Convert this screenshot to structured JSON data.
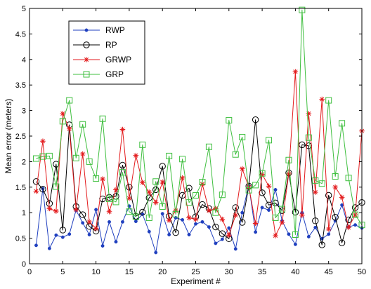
{
  "chart_data": {
    "type": "line",
    "title": "",
    "xlabel": "Experiment #",
    "ylabel": "Mean error (meters)",
    "xlim": [
      0,
      50
    ],
    "ylim": [
      0,
      5
    ],
    "xticks": [
      0,
      5,
      10,
      15,
      20,
      25,
      30,
      35,
      40,
      45,
      50
    ],
    "yticks": [
      0,
      0.5,
      1,
      1.5,
      2,
      2.5,
      3,
      3.5,
      4,
      4.5,
      5
    ],
    "ytick_labels": [
      "0",
      "0.5",
      "1",
      "1.5",
      "2",
      "2.5",
      "3",
      "3.5",
      "4",
      "4.5",
      "5"
    ],
    "grid": false,
    "legend_position": "top-left",
    "x": [
      1,
      2,
      3,
      4,
      5,
      6,
      7,
      8,
      9,
      10,
      11,
      12,
      13,
      14,
      15,
      16,
      17,
      18,
      19,
      20,
      21,
      22,
      23,
      24,
      25,
      26,
      27,
      28,
      29,
      30,
      31,
      32,
      33,
      34,
      35,
      36,
      37,
      38,
      39,
      40,
      41,
      42,
      43,
      44,
      45,
      46,
      47,
      48,
      49,
      50
    ],
    "series": [
      {
        "name": "RWP",
        "color": "#1f3fbf",
        "marker": "dot",
        "values": [
          0.36,
          1.47,
          0.3,
          0.56,
          0.52,
          0.58,
          1.05,
          0.8,
          0.57,
          1.06,
          0.35,
          0.82,
          0.43,
          0.82,
          1.13,
          0.83,
          0.97,
          0.63,
          0.22,
          0.98,
          0.57,
          0.9,
          0.86,
          0.57,
          0.78,
          0.82,
          0.72,
          0.4,
          0.48,
          0.7,
          0.29,
          1.0,
          1.53,
          0.62,
          1.1,
          1.05,
          1.45,
          0.84,
          0.58,
          0.38,
          1.0,
          0.53,
          0.71,
          0.49,
          0.58,
          0.84,
          1.15,
          0.72,
          0.76,
          0.7
        ]
      },
      {
        "name": "RP",
        "color": "#000000",
        "marker": "circle",
        "values": [
          1.61,
          1.46,
          1.18,
          1.95,
          0.66,
          2.72,
          1.12,
          0.96,
          0.73,
          0.64,
          1.27,
          1.3,
          1.32,
          1.93,
          1.5,
          0.93,
          1.01,
          1.29,
          1.45,
          1.91,
          0.93,
          0.61,
          1.34,
          1.48,
          0.92,
          1.16,
          1.08,
          0.72,
          0.59,
          0.49,
          1.1,
          0.81,
          1.52,
          2.82,
          1.39,
          1.15,
          1.19,
          1.04,
          1.78,
          1.01,
          2.33,
          2.31,
          0.84,
          0.37,
          1.34,
          0.91,
          0.41,
          0.86,
          1.1,
          1.2
        ]
      },
      {
        "name": "GRWP",
        "color": "#e31a1c",
        "marker": "star",
        "values": [
          1.42,
          2.4,
          1.08,
          1.03,
          2.94,
          2.64,
          1.06,
          2.15,
          0.82,
          0.69,
          1.66,
          1.02,
          1.45,
          2.63,
          1.28,
          2.12,
          1.59,
          1.4,
          1.2,
          1.6,
          0.85,
          1.04,
          1.68,
          0.9,
          0.87,
          1.56,
          1.04,
          1.08,
          0.87,
          0.56,
          0.95,
          1.86,
          1.5,
          0.79,
          1.75,
          1.52,
          0.55,
          0.81,
          1.76,
          3.76,
          0.95,
          2.94,
          1.4,
          3.22,
          0.68,
          1.5,
          1.3,
          0.71,
          0.96,
          2.6
        ]
      },
      {
        "name": "GRP",
        "color": "#3fbf3f",
        "marker": "square",
        "values": [
          2.06,
          2.1,
          2.11,
          1.51,
          2.79,
          3.2,
          2.07,
          2.73,
          2.0,
          1.67,
          2.84,
          1.27,
          1.21,
          1.79,
          1.02,
          0.92,
          2.33,
          0.9,
          1.61,
          1.12,
          2.11,
          0.97,
          2.05,
          1.2,
          1.34,
          1.6,
          2.29,
          1.0,
          1.35,
          2.81,
          2.14,
          2.48,
          1.44,
          1.54,
          1.77,
          2.42,
          0.9,
          1.07,
          2.03,
          0.57,
          4.97,
          2.47,
          1.63,
          1.57,
          3.2,
          1.71,
          2.75,
          1.68,
          0.96,
          0.76
        ]
      }
    ]
  }
}
